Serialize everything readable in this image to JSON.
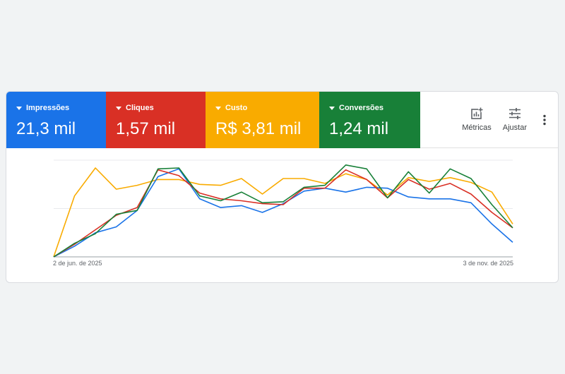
{
  "metrics": [
    {
      "label": "Impressões",
      "value": "21,3 mil",
      "color": "#1a73e8"
    },
    {
      "label": "Cliques",
      "value": "1,57 mil",
      "color": "#d93025"
    },
    {
      "label": "Custo",
      "value": "R$ 3,81 mil",
      "color": "#f9ab00"
    },
    {
      "label": "Conversões",
      "value": "1,24 mil",
      "color": "#188038"
    }
  ],
  "toolbar": {
    "metrics_label": "Métricas",
    "adjust_label": "Ajustar",
    "metrics_icon": "add-chart-icon",
    "adjust_icon": "tune-icon",
    "more_icon": "more-vert-icon"
  },
  "chart_data": {
    "type": "line",
    "x_start_label": "2 de jun. de 2025",
    "x_end_label": "3 de nov. de 2025",
    "ylim": [
      0,
      100
    ],
    "gridlines": [
      0,
      50,
      100
    ],
    "series": [
      {
        "name": "Impressões",
        "color": "#1a73e8",
        "values": [
          0,
          11,
          25,
          31,
          48,
          83,
          91,
          60,
          51,
          53,
          46,
          55,
          68,
          71,
          67,
          72,
          71,
          62,
          60,
          60,
          56,
          34,
          15
        ]
      },
      {
        "name": "Cliques",
        "color": "#d93025",
        "values": [
          0,
          13,
          28,
          43,
          51,
          90,
          84,
          66,
          60,
          58,
          55,
          54,
          71,
          71,
          90,
          80,
          61,
          80,
          70,
          76,
          65,
          46,
          30
        ]
      },
      {
        "name": "Custo",
        "color": "#f9ab00",
        "values": [
          0,
          63,
          92,
          70,
          74,
          80,
          80,
          75,
          74,
          81,
          65,
          81,
          81,
          76,
          86,
          80,
          64,
          82,
          78,
          82,
          77,
          67,
          34
        ]
      },
      {
        "name": "Conversões",
        "color": "#188038",
        "values": [
          0,
          14,
          24,
          44,
          48,
          91,
          92,
          63,
          58,
          67,
          56,
          57,
          72,
          74,
          95,
          91,
          61,
          88,
          66,
          91,
          81,
          54,
          30
        ]
      }
    ]
  }
}
